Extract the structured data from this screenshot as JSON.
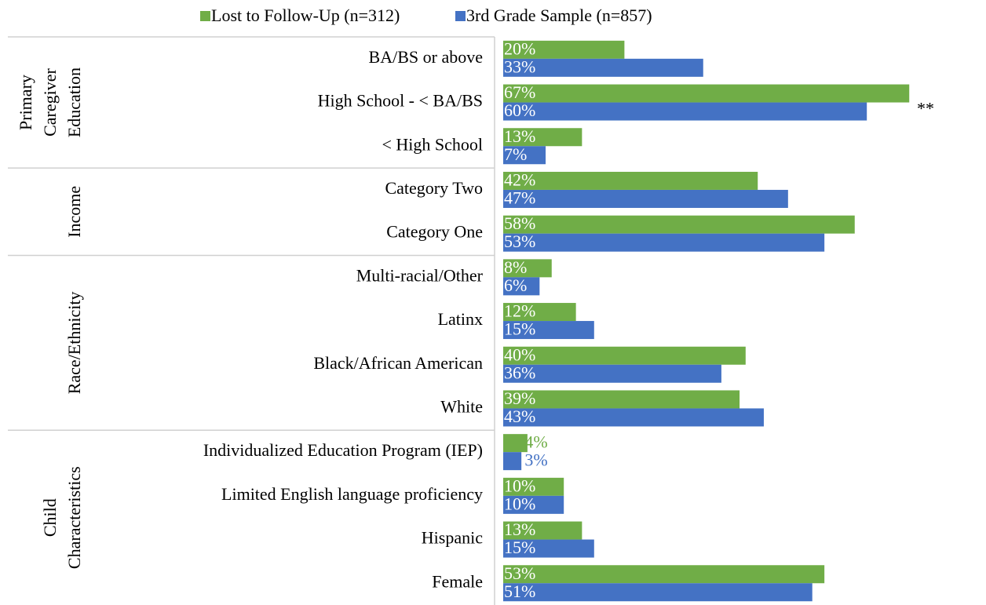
{
  "chart_data": {
    "type": "bar",
    "orientation": "horizontal",
    "categories": [
      "BA/BS or above",
      "High School - < BA/BS",
      "< High School",
      "Category Two",
      "Category One",
      "Multi-racial/Other",
      "Latinx",
      "Black/African American",
      "White",
      "Individualized Education Program (IEP)",
      "Limited English language proficiency",
      "Hispanic",
      "Female"
    ],
    "groups": [
      {
        "label": [
          "Primary",
          "Caregiver",
          "Education"
        ],
        "count": 3
      },
      {
        "label": [
          "Income"
        ],
        "count": 2
      },
      {
        "label": [
          "Race/Ethnicity"
        ],
        "count": 4
      },
      {
        "label": [
          "Child",
          "Characteristics"
        ],
        "count": 4
      }
    ],
    "series": [
      {
        "name": "Lost to Follow-Up (n=312)",
        "color": "#70ad47",
        "values": [
          20,
          67,
          13,
          42,
          58,
          8,
          12,
          40,
          39,
          4,
          10,
          13,
          53
        ],
        "value_labels": [
          "20%",
          "67%",
          "13%",
          "42%",
          "58%",
          "8%",
          "12%",
          "40%",
          "39%",
          "4%",
          "10%",
          "13%",
          "53%"
        ]
      },
      {
        "name": "3rd Grade Sample (n=857)",
        "color": "#4472c4",
        "values": [
          33,
          60,
          7,
          47,
          53,
          6,
          15,
          36,
          43,
          3,
          10,
          15,
          51
        ],
        "value_labels": [
          "33%",
          "60%",
          "7%",
          "47%",
          "53%",
          "6%",
          "15%",
          "36%",
          "43%",
          "3%",
          "10%",
          "15%",
          "51%"
        ]
      }
    ],
    "annotations": [
      {
        "text": "**",
        "category": 1
      }
    ],
    "xlim": [
      0,
      75
    ],
    "legend": "top"
  }
}
